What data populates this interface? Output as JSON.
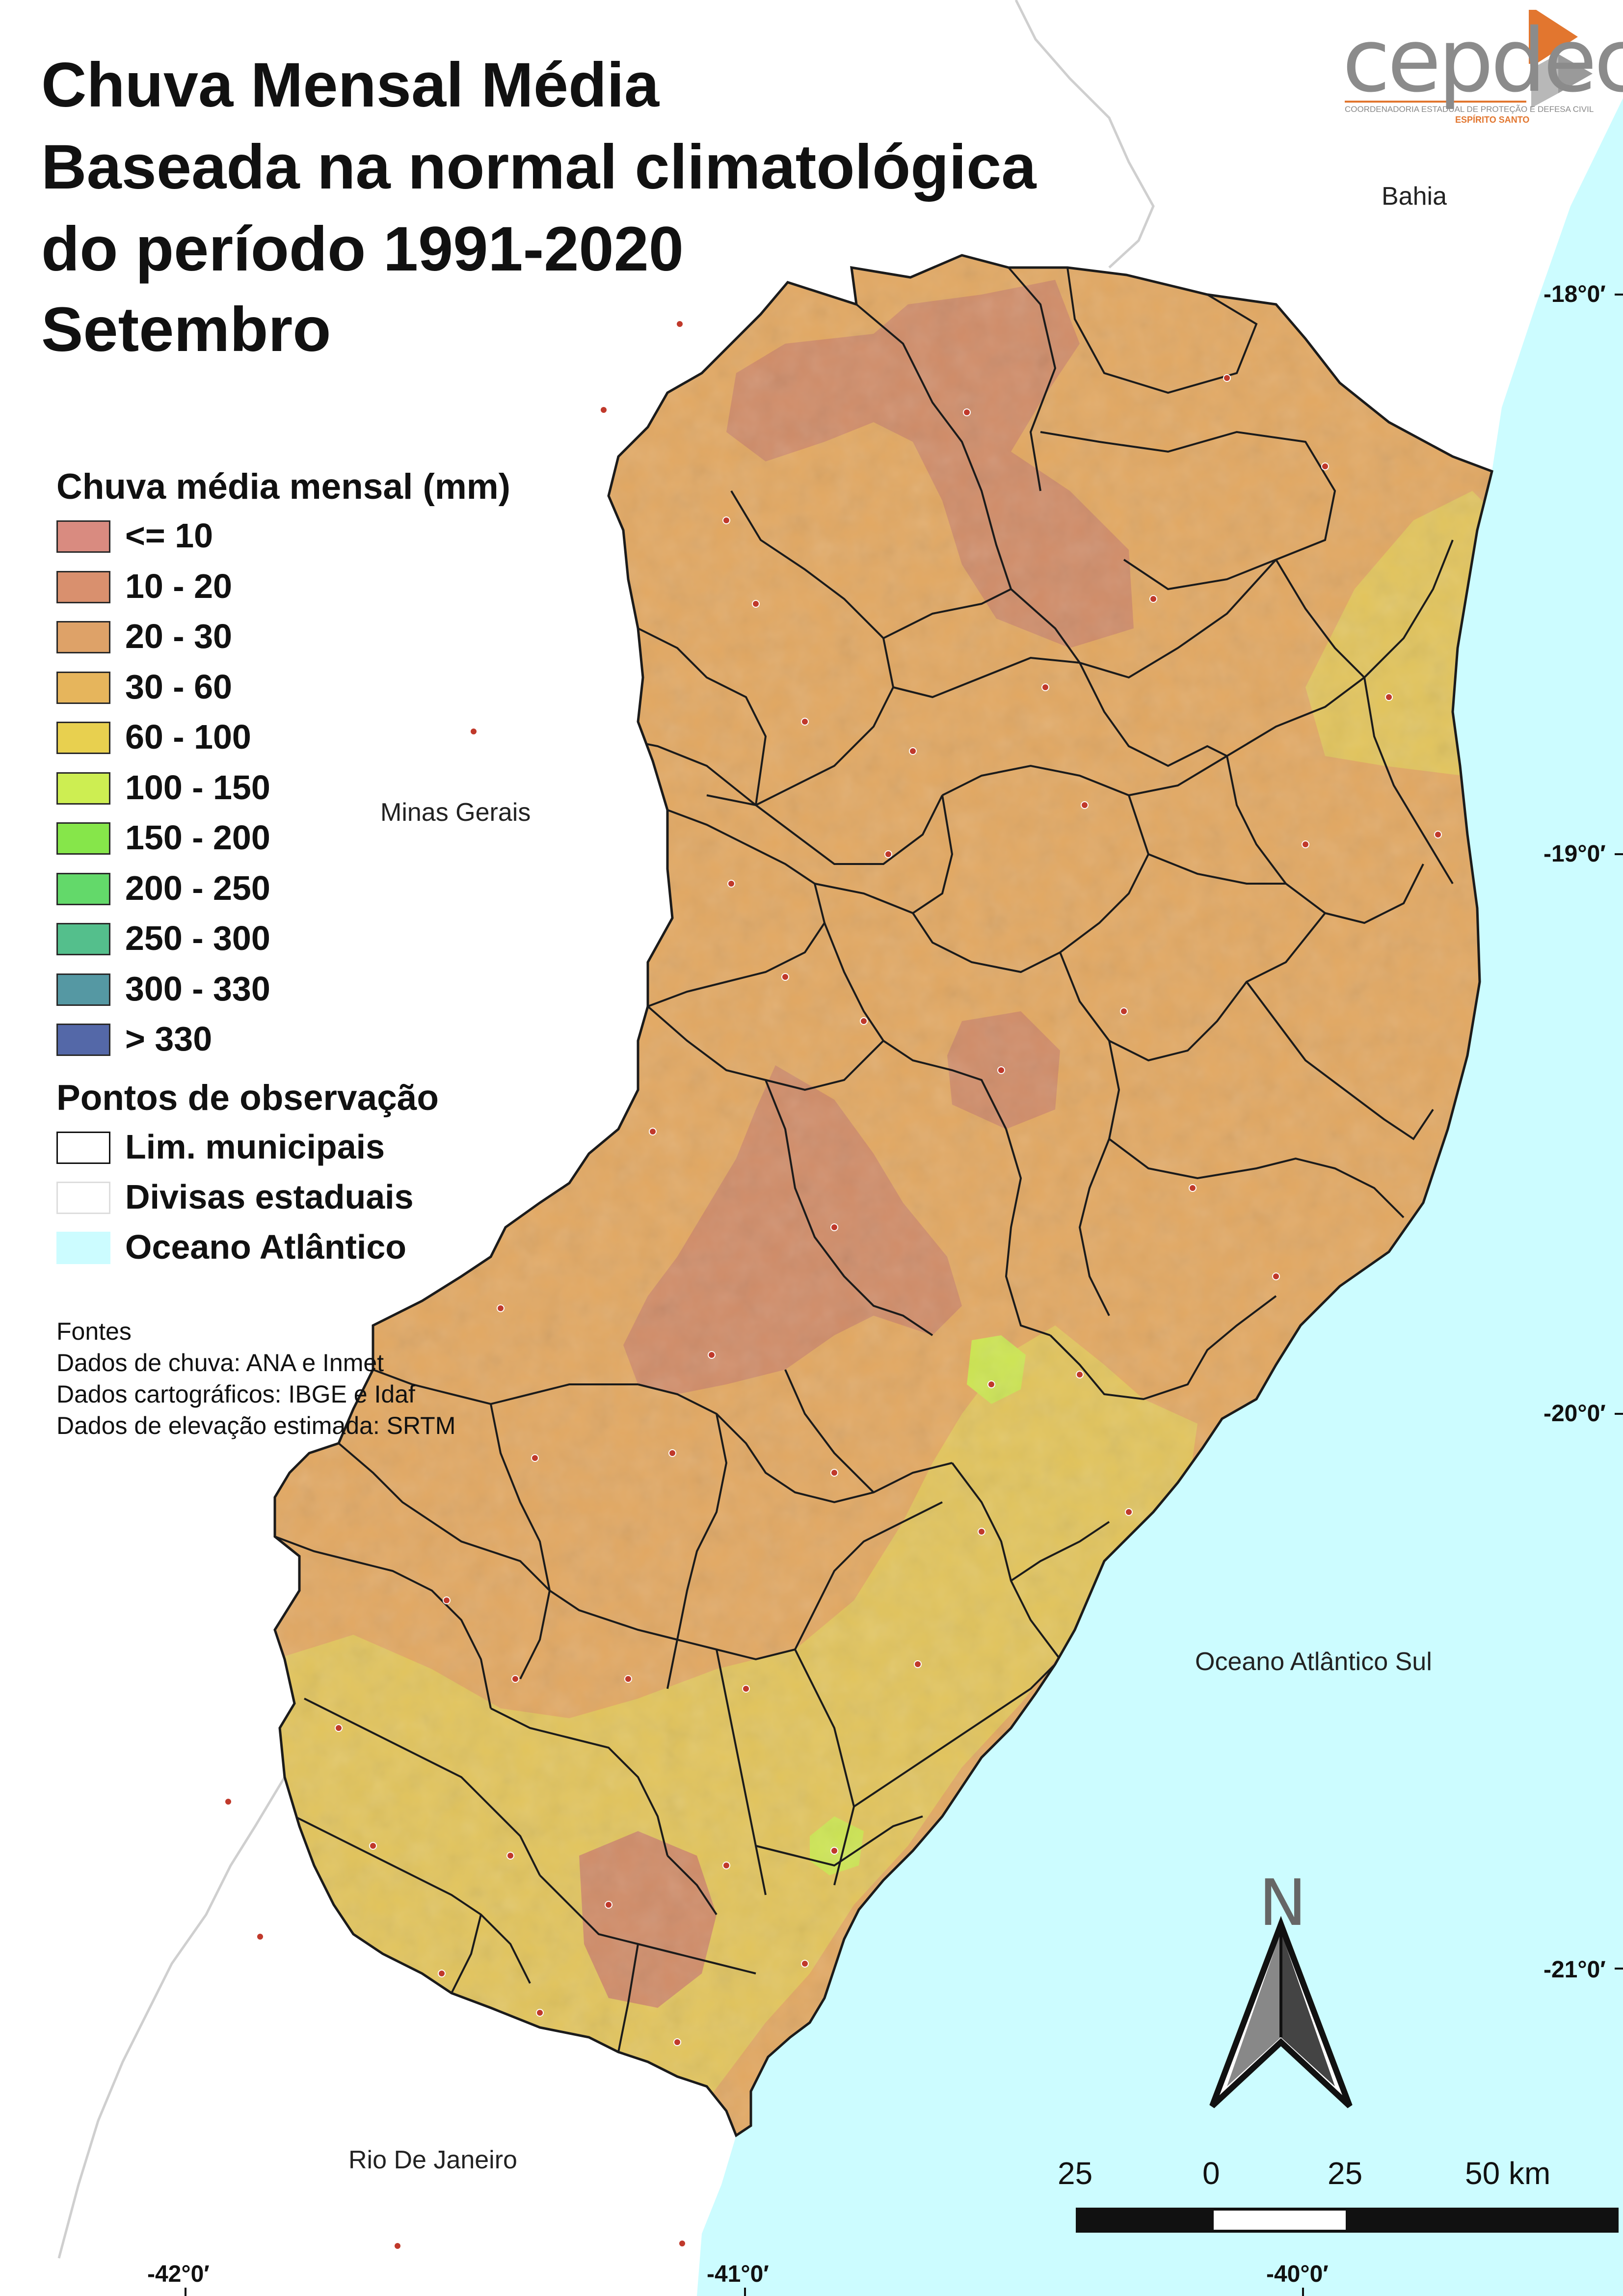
{
  "title": {
    "lines": [
      "Chuva Mensal Média",
      "Baseada na normal climatológica",
      "do período 1991-2020",
      "Setembro"
    ]
  },
  "logo": {
    "text": "cepdec",
    "subtitle": "COORDENADORIA ESTADUAL DE PROTEÇÃO E DEFESA CIVIL",
    "state": "ESPÍRITO SANTO",
    "accent_color": "#e2762f"
  },
  "legend": {
    "heading": "Chuva média mensal (mm)",
    "classes": [
      {
        "label": "<= 10",
        "color": "#d98b80"
      },
      {
        "label": "10 - 20",
        "color": "#d9906e"
      },
      {
        "label": "20 - 30",
        "color": "#dea268"
      },
      {
        "label": "30 - 60",
        "color": "#e6b55c"
      },
      {
        "label": "60 - 100",
        "color": "#e8d04f"
      },
      {
        "label": "100 - 150",
        "color": "#cdee52"
      },
      {
        "label": "150 - 200",
        "color": "#86e64a"
      },
      {
        "label": "200 - 250",
        "color": "#63d96a"
      },
      {
        "label": "250 - 300",
        "color": "#54bf8c"
      },
      {
        "label": "300 - 330",
        "color": "#5598a3"
      },
      {
        "label": "> 330",
        "color": "#5468a8"
      }
    ],
    "observation_heading": "Pontos de observação",
    "layers": [
      {
        "label": "Lim. municipais",
        "color": "#ffffff",
        "border": "#111111"
      },
      {
        "label": "Divisas estaduais",
        "color": "#ffffff",
        "border": "#dddddd"
      },
      {
        "label": "Oceano Atlântico",
        "color": "#ccfcff",
        "border": "#ccfcff"
      }
    ]
  },
  "sources": {
    "heading": "Fontes",
    "lines": [
      "Dados de chuva: ANA e Inmet",
      "Dados cartográficos: IBGE e Idaf",
      "Dados de elevação estimada: SRTM"
    ]
  },
  "places": {
    "bahia": "Bahia",
    "minas_gerais": "Minas Gerais",
    "oceano": "Oceano Atlântico Sul",
    "rio": "Rio De Janeiro"
  },
  "coordinates": {
    "lat_18": "-18°0′",
    "lat_19": "-19°0′",
    "lat_20": "-20°0′",
    "lat_21": "-21°0′",
    "lon_42": "-42°0′",
    "lon_41": "-41°0′",
    "lon_40": "-40°0′"
  },
  "scale": {
    "labels": [
      "25",
      "0",
      "25",
      "50 km"
    ]
  },
  "north": {
    "label": "N"
  },
  "colors": {
    "ocean": "#ccfcff",
    "base": "#e2a862",
    "dry": "#d08c68",
    "wet": "#e2c45c"
  }
}
